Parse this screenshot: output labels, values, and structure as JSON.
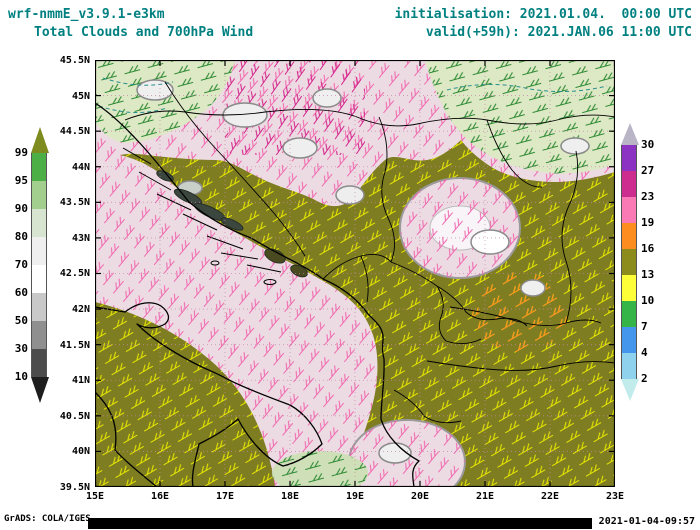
{
  "header": {
    "model": "wrf-nmmE_v3.9.1-e3km",
    "title": "Total Clouds and 700hPa Wind",
    "init_label": "initialisation: 2021.01.04.  00:00 UTC",
    "valid_label": "valid(+59h): 2021.JAN.06 11:00 UTC",
    "text_color": "#008080"
  },
  "footer": {
    "credit": "GrADS: COLA/IGES",
    "timestamp": "2021-01-04-09:57"
  },
  "chart_data": {
    "type": "heatmap",
    "title": "Total Clouds and 700hPa Wind",
    "subtitle": "wrf-nmmE_v3.9.1-e3km, initialisation 2021.01.04. 00:00 UTC, valid(+59h) 2021.JAN.06 11:00 UTC",
    "x_axis": {
      "name": "longitude",
      "ticks": [
        "15E",
        "16E",
        "17E",
        "18E",
        "19E",
        "20E",
        "21E",
        "22E",
        "23E"
      ],
      "range": [
        15,
        23
      ]
    },
    "y_axis": {
      "name": "latitude",
      "ticks": [
        "45.5N",
        "45N",
        "44.5N",
        "44N",
        "43.5N",
        "43N",
        "42.5N",
        "42N",
        "41.5N",
        "41N",
        "40.5N",
        "40N",
        "39.5N"
      ],
      "range": [
        39.5,
        45.5
      ]
    },
    "grid": "dotted",
    "legend_position": "left-and-right-colorbars",
    "cloud_cover_scale": {
      "boundaries": [
        99,
        95,
        90,
        80,
        70,
        60,
        50,
        30,
        10
      ],
      "segment_colors": [
        "#4caf46",
        "#a2cf8e",
        "#d7e4cf",
        "#efefef",
        "#ffffff",
        "#c9c9c9",
        "#8f8f8f",
        "#4c4c4c"
      ],
      "arrow_top_color": "#7d8b1f",
      "arrow_bottom_color": "#1e1e1e"
    },
    "wind_scale": {
      "boundaries": [
        30,
        27,
        23,
        19,
        16,
        13,
        10,
        7,
        4,
        2
      ],
      "segment_colors": [
        "#8c33c4",
        "#cc2d8f",
        "#f97ab5",
        "#fd8d1e",
        "#8c8c1d",
        "#fdfd38",
        "#35b547",
        "#4496ec",
        "#8fd2ee"
      ],
      "arrow_top_color": "#b9b5c6",
      "arrow_bottom_color": "#c2ecec"
    },
    "map_palette": {
      "overcast_fill": "#7e7d22",
      "clear_fill": "#eddbe3",
      "green_area_fill": "#dde8c4",
      "barb_yellow": "#e6e600",
      "barb_green": "#2d8a33",
      "barb_pink": "#f06ab0",
      "barb_magenta": "#d4268c",
      "barb_orange": "#ff9020"
    }
  }
}
